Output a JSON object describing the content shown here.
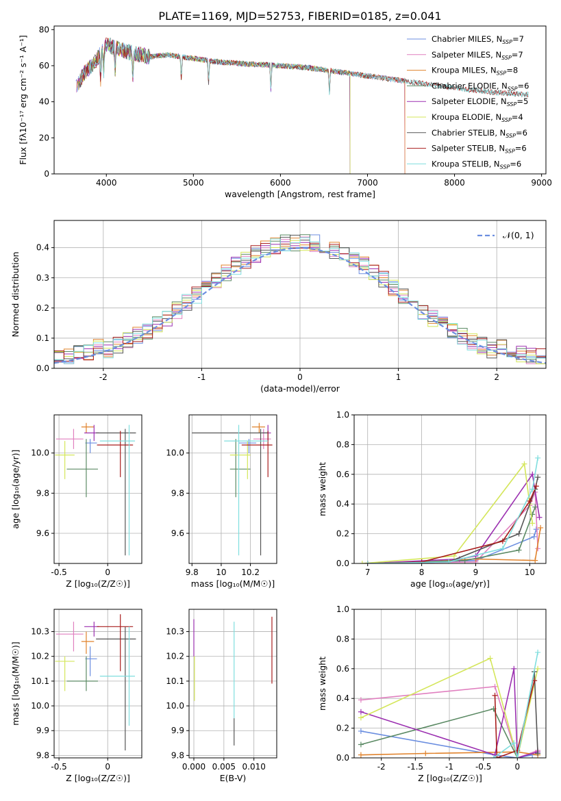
{
  "page": {
    "title": "PLATE=1169, MJD=52753, FIBERID=0185, z=0.041"
  },
  "colors": {
    "Chabrier MILES": "#6b8ee0",
    "Salpeter MILES": "#e07fbf",
    "Kroupa MILES": "#e0822b",
    "Chabrier ELODIE": "#5b8a64",
    "Salpeter ELODIE": "#9b2fb0",
    "Kroupa ELODIE": "#d4e65a",
    "Chabrier STELIB": "#555555",
    "Salpeter STELIB": "#a81c1c",
    "Kroupa STELIB": "#7fdede",
    "normal": "#6b8ee0"
  },
  "chart_data": [
    {
      "id": "spectrum",
      "type": "line",
      "title": "PLATE=1169, MJD=52753, FIBERID=0185, z=0.041",
      "xlabel": "wavelength [Angstrom, rest frame]",
      "ylabel": "Flux [fλ10⁻¹⁷ erg cm⁻² s⁻¹ A⁻¹]",
      "xlim": [
        3400,
        9050
      ],
      "ylim": [
        0,
        82
      ],
      "xticks": [
        4000,
        5000,
        6000,
        7000,
        8000,
        9000
      ],
      "yticks": [
        0,
        20,
        40,
        60,
        80
      ],
      "legend_position": "top-right",
      "continuum_x": [
        3650,
        3750,
        3900,
        4000,
        4100,
        4300,
        4500,
        4700,
        5000,
        5300,
        5600,
        6000,
        6300,
        6600,
        6900,
        7200,
        7500,
        7800,
        8100,
        8500,
        8850
      ],
      "continuum_y": [
        48,
        56,
        64,
        72,
        70,
        67,
        65,
        66,
        64,
        62,
        61,
        60,
        59,
        57,
        55,
        53,
        51,
        49,
        47,
        45,
        44
      ],
      "series": [
        {
          "name": "Chabrier MILES, N",
          "sub": "SSP",
          "suffix": "=7",
          "end": 7430
        },
        {
          "name": "Salpeter MILES, N",
          "sub": "SSP",
          "suffix": "=7",
          "end": 7430
        },
        {
          "name": "Kroupa MILES, N",
          "sub": "SSP",
          "suffix": "=8",
          "end": 7430
        },
        {
          "name": "Chabrier ELODIE, N",
          "sub": "SSP",
          "suffix": "=6",
          "end": 6800
        },
        {
          "name": "Salpeter ELODIE, N",
          "sub": "SSP",
          "suffix": "=5",
          "end": 6800
        },
        {
          "name": "Kroupa ELODIE, N",
          "sub": "SSP",
          "suffix": "=4",
          "end": 6800
        },
        {
          "name": "Chabrier STELIB, N",
          "sub": "SSP",
          "suffix": "=6",
          "end": 8850
        },
        {
          "name": "Salpeter STELIB, N",
          "sub": "SSP",
          "suffix": "=6",
          "end": 8850
        },
        {
          "name": "Kroupa STELIB, N",
          "sub": "SSP",
          "suffix": "=6",
          "end": 8850
        }
      ]
    },
    {
      "id": "residuals",
      "type": "histogram",
      "xlabel": "(data-model)/error",
      "ylabel": "Normed distribution",
      "xlim": [
        -2.5,
        2.5
      ],
      "ylim": [
        0,
        0.49
      ],
      "xticks": [
        -2,
        -1,
        0,
        1,
        2
      ],
      "yticks": [
        0.0,
        0.1,
        0.2,
        0.3,
        0.4
      ],
      "grid": true,
      "bin_width": 0.1,
      "legend_position": "top-right",
      "legend": "𝒩(0, 1)",
      "series_order": [
        "Chabrier MILES",
        "Salpeter MILES",
        "Kroupa MILES",
        "Chabrier ELODIE",
        "Salpeter ELODIE",
        "Kroupa ELODIE",
        "Chabrier STELIB",
        "Salpeter STELIB",
        "Kroupa STELIB"
      ]
    },
    {
      "id": "age_vs_Z",
      "type": "errorbar",
      "xlabel": "Z [log₁₀(Z/Z☉)]",
      "ylabel": "age  [log₁₀(age/yr)]",
      "xlim": [
        -0.55,
        0.35
      ],
      "ylim": [
        9.45,
        10.19
      ],
      "xticks": [
        -0.5,
        0.0
      ],
      "yticks": [
        9.6,
        9.8,
        10.0
      ],
      "grid": true,
      "points": [
        {
          "series": "Chabrier MILES",
          "x": -0.18,
          "xerr": [
            0.05,
            0.07
          ],
          "y": 10.05,
          "yerr": [
            0.05,
            0.02
          ]
        },
        {
          "series": "Salpeter MILES",
          "x": -0.35,
          "xerr": [
            0.18,
            0.1
          ],
          "y": 10.07,
          "yerr": [
            0.05,
            0.05
          ]
        },
        {
          "series": "Kroupa MILES",
          "x": -0.22,
          "xerr": [
            0.05,
            0.08
          ],
          "y": 10.13,
          "yerr": [
            0.03,
            0.02
          ]
        },
        {
          "series": "Chabrier ELODIE",
          "x": -0.22,
          "xerr": [
            0.2,
            0.12
          ],
          "y": 9.92,
          "yerr": [
            0.14,
            0.15
          ]
        },
        {
          "series": "Salpeter ELODIE",
          "x": -0.14,
          "xerr": [
            0.1,
            0.05
          ],
          "y": 10.1,
          "yerr": [
            0.04,
            0.04
          ]
        },
        {
          "series": "Kroupa ELODIE",
          "x": -0.44,
          "xerr": [
            0.1,
            0.1
          ],
          "y": 9.99,
          "yerr": [
            0.12,
            0.07
          ]
        },
        {
          "series": "Chabrier STELIB",
          "x": 0.18,
          "xerr": [
            0.3,
            0.11
          ],
          "y": 10.1,
          "yerr": [
            0.61,
            0.02
          ]
        },
        {
          "series": "Salpeter STELIB",
          "x": 0.13,
          "xerr": [
            0.24,
            0.13
          ],
          "y": 10.04,
          "yerr": [
            0.16,
            0.07
          ]
        },
        {
          "series": "Kroupa STELIB",
          "x": 0.22,
          "xerr": [
            0.3,
            0.06
          ],
          "y": 10.06,
          "yerr": [
            0.57,
            0.08
          ]
        }
      ]
    },
    {
      "id": "age_vs_mass",
      "type": "errorbar",
      "xlabel": "mass [log₁₀(M/M☉)]",
      "ylabel": "",
      "xlim": [
        9.78,
        10.38
      ],
      "ylim": [
        9.45,
        10.19
      ],
      "xticks": [
        9.8,
        10.0,
        10.2
      ],
      "yticks": [
        9.6,
        9.8,
        10.0
      ],
      "grid": true,
      "points": [
        {
          "series": "Chabrier MILES",
          "x": 10.19,
          "xerr": [
            0.07,
            0.05
          ],
          "y": 10.05,
          "yerr": [
            0.05,
            0.02
          ]
        },
        {
          "series": "Salpeter MILES",
          "x": 10.29,
          "xerr": [
            0.07,
            0.05
          ],
          "y": 10.07,
          "yerr": [
            0.05,
            0.05
          ]
        },
        {
          "series": "Kroupa MILES",
          "x": 10.26,
          "xerr": [
            0.05,
            0.04
          ],
          "y": 10.13,
          "yerr": [
            0.03,
            0.02
          ]
        },
        {
          "series": "Chabrier ELODIE",
          "x": 10.1,
          "xerr": [
            0.04,
            0.1
          ],
          "y": 9.92,
          "yerr": [
            0.14,
            0.15
          ]
        },
        {
          "series": "Salpeter ELODIE",
          "x": 10.32,
          "xerr": [
            0.04,
            0.02
          ],
          "y": 10.1,
          "yerr": [
            0.04,
            0.04
          ]
        },
        {
          "series": "Kroupa ELODIE",
          "x": 10.18,
          "xerr": [
            0.12,
            0.02
          ],
          "y": 9.99,
          "yerr": [
            0.12,
            0.07
          ]
        },
        {
          "series": "Chabrier STELIB",
          "x": 10.27,
          "xerr": [
            0.47,
            0.05
          ],
          "y": 10.1,
          "yerr": [
            0.61,
            0.02
          ]
        },
        {
          "series": "Salpeter STELIB",
          "x": 10.32,
          "xerr": [
            0.18,
            0.03
          ],
          "y": 10.04,
          "yerr": [
            0.16,
            0.07
          ]
        },
        {
          "series": "Kroupa STELIB",
          "x": 10.12,
          "xerr": [
            0.1,
            0.2
          ],
          "y": 10.06,
          "yerr": [
            0.57,
            0.08
          ]
        }
      ]
    },
    {
      "id": "massweight_vs_age",
      "type": "line",
      "xlabel": "age  [log₁₀(age/yr)]",
      "ylabel": "mass weight",
      "xlim": [
        6.75,
        10.3
      ],
      "ylim": [
        0,
        1.0
      ],
      "xticks": [
        7,
        8,
        9,
        10
      ],
      "yticks": [
        0.0,
        0.2,
        0.4,
        0.6,
        0.8,
        1.0
      ],
      "grid": true,
      "series": [
        {
          "series": "Chabrier MILES",
          "x": [
            7.0,
            8.0,
            9.0,
            10.08,
            10.12
          ],
          "y": [
            0.0,
            0.01,
            0.02,
            0.18,
            0.23
          ]
        },
        {
          "series": "Salpeter MILES",
          "x": [
            7.0,
            9.0,
            10.0,
            10.1,
            10.15
          ],
          "y": [
            0.0,
            0.01,
            0.39,
            0.48,
            0.1
          ]
        },
        {
          "series": "Kroupa MILES",
          "x": [
            7.0,
            8.0,
            9.0,
            10.1,
            10.2
          ],
          "y": [
            0.0,
            0.01,
            0.03,
            0.02,
            0.24
          ]
        },
        {
          "series": "Chabrier ELODIE",
          "x": [
            7.0,
            8.8,
            9.8,
            10.05,
            10.1
          ],
          "y": [
            0.0,
            0.02,
            0.09,
            0.33,
            0.38
          ]
        },
        {
          "series": "Salpeter ELODIE",
          "x": [
            7.0,
            8.7,
            9.0,
            10.05,
            10.18
          ],
          "y": [
            0.0,
            0.03,
            0.05,
            0.6,
            0.31
          ]
        },
        {
          "series": "Kroupa ELODIE",
          "x": [
            6.9,
            8.6,
            9.9,
            10.0,
            10.05
          ],
          "y": [
            0.0,
            0.05,
            0.67,
            0.4,
            0.27
          ]
        },
        {
          "series": "Chabrier STELIB",
          "x": [
            7.0,
            8.5,
            9.8,
            10.1,
            10.15
          ],
          "y": [
            0.0,
            0.01,
            0.2,
            0.5,
            0.58
          ]
        },
        {
          "series": "Salpeter STELIB",
          "x": [
            7.0,
            8.0,
            9.5,
            10.0,
            10.12
          ],
          "y": [
            0.0,
            0.01,
            0.15,
            0.42,
            0.52
          ]
        },
        {
          "series": "Kroupa STELIB",
          "x": [
            7.0,
            8.5,
            9.5,
            10.05,
            10.15
          ],
          "y": [
            0.0,
            0.01,
            0.1,
            0.5,
            0.71
          ]
        }
      ]
    },
    {
      "id": "mass_vs_Z",
      "type": "errorbar",
      "xlabel": "Z [log₁₀(Z/Z☉)]",
      "ylabel": "mass [log₁₀(M/M☉)]",
      "xlim": [
        -0.55,
        0.35
      ],
      "ylim": [
        9.79,
        10.39
      ],
      "xticks": [
        -0.5,
        0.0
      ],
      "yticks": [
        9.8,
        9.9,
        10.0,
        10.1,
        10.2,
        10.3
      ],
      "grid": true,
      "points": [
        {
          "series": "Chabrier MILES",
          "x": -0.18,
          "xerr": [
            0.05,
            0.07
          ],
          "y": 10.19,
          "yerr": [
            0.07,
            0.05
          ]
        },
        {
          "series": "Salpeter MILES",
          "x": -0.35,
          "xerr": [
            0.18,
            0.1
          ],
          "y": 10.29,
          "yerr": [
            0.07,
            0.05
          ]
        },
        {
          "series": "Kroupa MILES",
          "x": -0.22,
          "xerr": [
            0.05,
            0.08
          ],
          "y": 10.26,
          "yerr": [
            0.05,
            0.04
          ]
        },
        {
          "series": "Chabrier ELODIE",
          "x": -0.22,
          "xerr": [
            0.2,
            0.12
          ],
          "y": 10.1,
          "yerr": [
            0.04,
            0.1
          ]
        },
        {
          "series": "Salpeter ELODIE",
          "x": -0.14,
          "xerr": [
            0.1,
            0.05
          ],
          "y": 10.32,
          "yerr": [
            0.04,
            0.02
          ]
        },
        {
          "series": "Kroupa ELODIE",
          "x": -0.44,
          "xerr": [
            0.1,
            0.1
          ],
          "y": 10.18,
          "yerr": [
            0.12,
            0.02
          ]
        },
        {
          "series": "Chabrier STELIB",
          "x": 0.18,
          "xerr": [
            0.3,
            0.11
          ],
          "y": 10.27,
          "yerr": [
            0.45,
            0.05
          ]
        },
        {
          "series": "Salpeter STELIB",
          "x": 0.13,
          "xerr": [
            0.24,
            0.13
          ],
          "y": 10.32,
          "yerr": [
            0.18,
            0.05
          ]
        },
        {
          "series": "Kroupa STELIB",
          "x": 0.22,
          "xerr": [
            0.3,
            0.06
          ],
          "y": 10.12,
          "yerr": [
            0.2,
            0.2
          ]
        }
      ]
    },
    {
      "id": "mass_vs_ebv",
      "type": "errorbar",
      "xlabel": "E(B-V)",
      "ylabel": "",
      "xlim": [
        -0.0008,
        0.0138
      ],
      "ylim": [
        9.79,
        10.39
      ],
      "xticks": [
        0.0,
        0.005,
        0.01
      ],
      "xticklabels": [
        "0.000",
        "0.005",
        "0.010"
      ],
      "yticks": [
        9.8,
        9.9,
        10.0,
        10.1,
        10.2,
        10.3
      ],
      "grid": true,
      "points": [
        {
          "series": "Salpeter ELODIE",
          "x": 0.0,
          "y": 10.24,
          "yerr": [
            0.04,
            0.11
          ]
        },
        {
          "series": "Kroupa ELODIE",
          "x": 0.0001,
          "y": 10.1,
          "yerr": [
            0.08,
            0.1
          ]
        },
        {
          "series": "Kroupa STELIB",
          "x": 0.0067,
          "y": 10.1,
          "yerr": [
            0.15,
            0.24
          ]
        },
        {
          "series": "Chabrier STELIB",
          "x": 0.0067,
          "y": 9.9,
          "yerr": [
            0.06,
            0.05
          ]
        },
        {
          "series": "Salpeter STELIB",
          "x": 0.013,
          "y": 10.22,
          "yerr": [
            0.13,
            0.14
          ]
        }
      ]
    },
    {
      "id": "massweight_vs_Z",
      "type": "line",
      "xlabel": "Z [log₁₀(Z/Z☉)]",
      "ylabel": "mass weight",
      "xlim": [
        -2.4,
        0.42
      ],
      "ylim": [
        0,
        1.0
      ],
      "xticks": [
        -2.0,
        -1.5,
        -1.0,
        -0.5,
        0.0
      ],
      "yticks": [
        0.0,
        0.2,
        0.4,
        0.6,
        0.8,
        1.0
      ],
      "grid": true,
      "series": [
        {
          "series": "Chabrier MILES",
          "x": [
            -2.3,
            -0.33,
            0.0,
            0.22
          ],
          "y": [
            0.18,
            0.02,
            0.0,
            0.02
          ]
        },
        {
          "series": "Salpeter MILES",
          "x": [
            -2.3,
            -0.33,
            0.0,
            0.3
          ],
          "y": [
            0.39,
            0.48,
            0.0,
            0.05
          ]
        },
        {
          "series": "Kroupa MILES",
          "x": [
            -2.3,
            -1.35,
            0.0,
            0.3
          ],
          "y": [
            0.02,
            0.03,
            0.04,
            0.02
          ]
        },
        {
          "series": "Chabrier ELODIE",
          "x": [
            -2.3,
            -0.35,
            0.0,
            0.25
          ],
          "y": [
            0.09,
            0.33,
            0.0,
            0.58
          ]
        },
        {
          "series": "Salpeter ELODIE",
          "x": [
            -2.3,
            -0.33,
            -0.05,
            0.0,
            0.3
          ],
          "y": [
            0.31,
            0.02,
            0.6,
            0.0,
            0.04
          ]
        },
        {
          "series": "Kroupa ELODIE",
          "x": [
            -2.3,
            -0.4,
            0.0,
            0.3
          ],
          "y": [
            0.27,
            0.67,
            0.0,
            0.6
          ]
        },
        {
          "series": "Chabrier STELIB",
          "x": [
            -0.3,
            0.0,
            0.25,
            0.3
          ],
          "y": [
            0.0,
            0.0,
            0.58,
            0.03
          ]
        },
        {
          "series": "Salpeter STELIB",
          "x": [
            -0.33,
            -0.3,
            0.0,
            0.25
          ],
          "y": [
            0.42,
            0.0,
            0.05,
            0.52
          ]
        },
        {
          "series": "Kroupa STELIB",
          "x": [
            -0.35,
            -0.05,
            0.0,
            0.3
          ],
          "y": [
            0.0,
            0.1,
            0.0,
            0.71
          ]
        }
      ]
    }
  ]
}
